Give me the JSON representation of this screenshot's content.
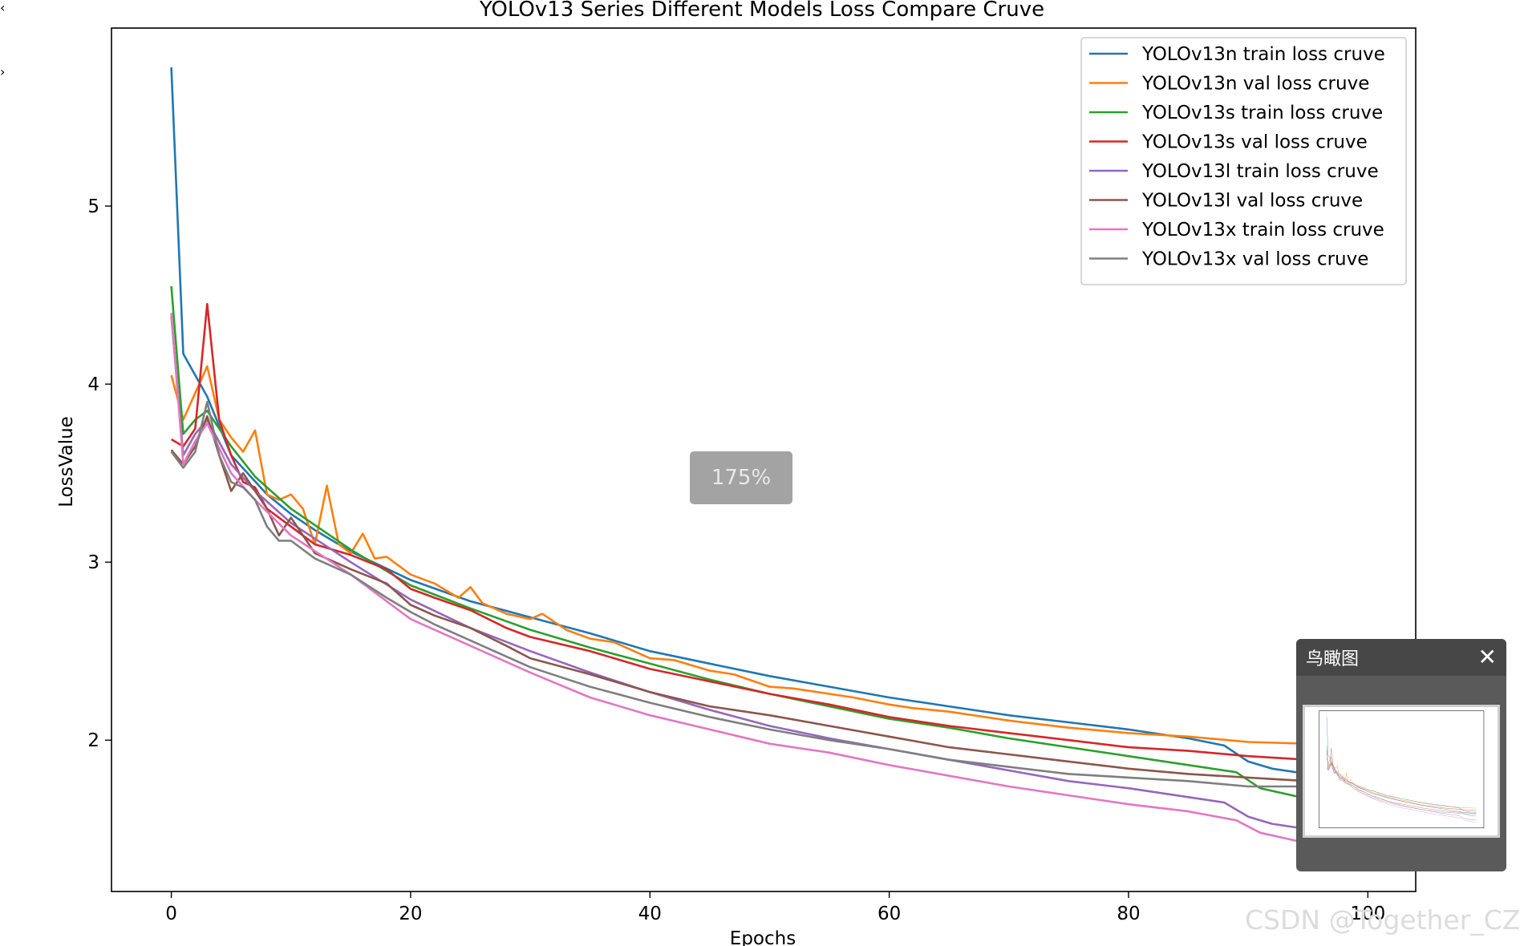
{
  "viewer": {
    "prev_label": "‹",
    "next_label": "›",
    "zoom_text": "175%",
    "minimap_title": "鸟瞰图",
    "minimap_close_label": "✕",
    "watermark": "CSDN @Together_CZ",
    "prev_icon": "chevron-left-icon",
    "next_icon": "chevron-right-icon",
    "close_icon": "close-icon"
  },
  "chart_data": {
    "type": "line",
    "title": "YOLOv13 Series Different Models Loss Compare Cruve",
    "xlabel": "Epochs",
    "ylabel": "LossValue",
    "xlim": [
      -5,
      104
    ],
    "ylim": [
      1.15,
      6.0
    ],
    "x_ticks": [
      0,
      20,
      40,
      60,
      80,
      100
    ],
    "y_ticks": [
      2,
      3,
      4,
      5
    ],
    "grid": false,
    "legend_position": "top-right",
    "series": [
      {
        "name": "YOLOv13n train loss cruve",
        "color": "#1f77b4",
        "points": [
          [
            0,
            5.78
          ],
          [
            1,
            4.17
          ],
          [
            3,
            3.93
          ],
          [
            5,
            3.6
          ],
          [
            8,
            3.38
          ],
          [
            10,
            3.27
          ],
          [
            12,
            3.18
          ],
          [
            15,
            3.06
          ],
          [
            20,
            2.9
          ],
          [
            25,
            2.78
          ],
          [
            30,
            2.69
          ],
          [
            35,
            2.6
          ],
          [
            40,
            2.5
          ],
          [
            45,
            2.43
          ],
          [
            50,
            2.36
          ],
          [
            55,
            2.3
          ],
          [
            60,
            2.24
          ],
          [
            65,
            2.19
          ],
          [
            70,
            2.14
          ],
          [
            75,
            2.1
          ],
          [
            80,
            2.06
          ],
          [
            85,
            2.01
          ],
          [
            88,
            1.97
          ],
          [
            90,
            1.88
          ],
          [
            92,
            1.84
          ],
          [
            95,
            1.81
          ],
          [
            99,
            1.8
          ]
        ]
      },
      {
        "name": "YOLOv13n val loss cruve",
        "color": "#ff7f0e",
        "points": [
          [
            0,
            4.05
          ],
          [
            1,
            3.8
          ],
          [
            2,
            3.95
          ],
          [
            3,
            4.1
          ],
          [
            4,
            3.8
          ],
          [
            5,
            3.7
          ],
          [
            6,
            3.62
          ],
          [
            7,
            3.74
          ],
          [
            8,
            3.38
          ],
          [
            9,
            3.35
          ],
          [
            10,
            3.38
          ],
          [
            11,
            3.3
          ],
          [
            12,
            3.1
          ],
          [
            13,
            3.43
          ],
          [
            14,
            3.1
          ],
          [
            15,
            3.05
          ],
          [
            16,
            3.16
          ],
          [
            17,
            3.02
          ],
          [
            18,
            3.03
          ],
          [
            20,
            2.93
          ],
          [
            22,
            2.88
          ],
          [
            24,
            2.8
          ],
          [
            25,
            2.86
          ],
          [
            26,
            2.77
          ],
          [
            28,
            2.71
          ],
          [
            30,
            2.68
          ],
          [
            31,
            2.71
          ],
          [
            33,
            2.62
          ],
          [
            35,
            2.57
          ],
          [
            37,
            2.55
          ],
          [
            40,
            2.46
          ],
          [
            42,
            2.45
          ],
          [
            45,
            2.39
          ],
          [
            47,
            2.37
          ],
          [
            50,
            2.3
          ],
          [
            52,
            2.29
          ],
          [
            55,
            2.26
          ],
          [
            57,
            2.24
          ],
          [
            60,
            2.2
          ],
          [
            62,
            2.18
          ],
          [
            65,
            2.16
          ],
          [
            70,
            2.11
          ],
          [
            75,
            2.07
          ],
          [
            80,
            2.04
          ],
          [
            85,
            2.02
          ],
          [
            90,
            1.99
          ],
          [
            95,
            1.98
          ],
          [
            99,
            1.97
          ]
        ]
      },
      {
        "name": "YOLOv13s train loss cruve",
        "color": "#2ca02c",
        "points": [
          [
            0,
            4.55
          ],
          [
            1,
            3.72
          ],
          [
            2,
            3.8
          ],
          [
            3,
            3.85
          ],
          [
            5,
            3.65
          ],
          [
            7,
            3.48
          ],
          [
            10,
            3.3
          ],
          [
            15,
            3.07
          ],
          [
            20,
            2.87
          ],
          [
            25,
            2.74
          ],
          [
            30,
            2.62
          ],
          [
            35,
            2.52
          ],
          [
            40,
            2.43
          ],
          [
            45,
            2.34
          ],
          [
            50,
            2.26
          ],
          [
            55,
            2.19
          ],
          [
            60,
            2.12
          ],
          [
            65,
            2.07
          ],
          [
            70,
            2.01
          ],
          [
            75,
            1.96
          ],
          [
            80,
            1.91
          ],
          [
            85,
            1.86
          ],
          [
            89,
            1.82
          ],
          [
            91,
            1.73
          ],
          [
            95,
            1.67
          ],
          [
            99,
            1.64
          ]
        ]
      },
      {
        "name": "YOLOv13s val loss cruve",
        "color": "#d62728",
        "points": [
          [
            0,
            3.69
          ],
          [
            1,
            3.65
          ],
          [
            2,
            3.75
          ],
          [
            3,
            4.45
          ],
          [
            4,
            3.8
          ],
          [
            5,
            3.6
          ],
          [
            6,
            3.45
          ],
          [
            7,
            3.42
          ],
          [
            8,
            3.3
          ],
          [
            9,
            3.25
          ],
          [
            10,
            3.2
          ],
          [
            12,
            3.1
          ],
          [
            15,
            3.04
          ],
          [
            18,
            2.96
          ],
          [
            20,
            2.85
          ],
          [
            22,
            2.8
          ],
          [
            25,
            2.73
          ],
          [
            28,
            2.63
          ],
          [
            30,
            2.58
          ],
          [
            35,
            2.5
          ],
          [
            40,
            2.4
          ],
          [
            45,
            2.33
          ],
          [
            50,
            2.26
          ],
          [
            55,
            2.2
          ],
          [
            60,
            2.13
          ],
          [
            65,
            2.08
          ],
          [
            70,
            2.04
          ],
          [
            75,
            2.0
          ],
          [
            80,
            1.96
          ],
          [
            85,
            1.94
          ],
          [
            90,
            1.91
          ],
          [
            95,
            1.89
          ],
          [
            99,
            1.87
          ]
        ]
      },
      {
        "name": "YOLOv13l train loss cruve",
        "color": "#9467bd",
        "points": [
          [
            0,
            4.38
          ],
          [
            1,
            3.6
          ],
          [
            2,
            3.72
          ],
          [
            3,
            3.8
          ],
          [
            5,
            3.55
          ],
          [
            7,
            3.4
          ],
          [
            10,
            3.22
          ],
          [
            15,
            3.0
          ],
          [
            20,
            2.79
          ],
          [
            25,
            2.63
          ],
          [
            30,
            2.5
          ],
          [
            35,
            2.38
          ],
          [
            40,
            2.27
          ],
          [
            45,
            2.17
          ],
          [
            50,
            2.08
          ],
          [
            55,
            2.01
          ],
          [
            60,
            1.95
          ],
          [
            65,
            1.89
          ],
          [
            70,
            1.83
          ],
          [
            75,
            1.77
          ],
          [
            80,
            1.73
          ],
          [
            85,
            1.68
          ],
          [
            88,
            1.65
          ],
          [
            90,
            1.57
          ],
          [
            92,
            1.53
          ],
          [
            95,
            1.5
          ],
          [
            99,
            1.47
          ]
        ]
      },
      {
        "name": "YOLOv13l val loss cruve",
        "color": "#8c564b",
        "points": [
          [
            0,
            3.63
          ],
          [
            1,
            3.55
          ],
          [
            2,
            3.65
          ],
          [
            3,
            3.82
          ],
          [
            4,
            3.6
          ],
          [
            5,
            3.4
          ],
          [
            6,
            3.5
          ],
          [
            8,
            3.3
          ],
          [
            9,
            3.15
          ],
          [
            10,
            3.25
          ],
          [
            12,
            3.05
          ],
          [
            15,
            2.96
          ],
          [
            18,
            2.88
          ],
          [
            20,
            2.76
          ],
          [
            22,
            2.7
          ],
          [
            25,
            2.63
          ],
          [
            28,
            2.53
          ],
          [
            30,
            2.46
          ],
          [
            35,
            2.37
          ],
          [
            40,
            2.27
          ],
          [
            45,
            2.19
          ],
          [
            50,
            2.14
          ],
          [
            55,
            2.08
          ],
          [
            60,
            2.02
          ],
          [
            65,
            1.96
          ],
          [
            70,
            1.92
          ],
          [
            75,
            1.88
          ],
          [
            80,
            1.84
          ],
          [
            85,
            1.81
          ],
          [
            90,
            1.79
          ],
          [
            95,
            1.77
          ],
          [
            99,
            1.76
          ]
        ]
      },
      {
        "name": "YOLOv13x train loss cruve",
        "color": "#e377c2",
        "points": [
          [
            0,
            4.4
          ],
          [
            1,
            3.55
          ],
          [
            2,
            3.68
          ],
          [
            3,
            3.78
          ],
          [
            5,
            3.5
          ],
          [
            7,
            3.35
          ],
          [
            10,
            3.15
          ],
          [
            15,
            2.93
          ],
          [
            20,
            2.68
          ],
          [
            25,
            2.53
          ],
          [
            30,
            2.38
          ],
          [
            35,
            2.24
          ],
          [
            40,
            2.14
          ],
          [
            45,
            2.06
          ],
          [
            50,
            1.98
          ],
          [
            55,
            1.93
          ],
          [
            60,
            1.86
          ],
          [
            65,
            1.8
          ],
          [
            70,
            1.74
          ],
          [
            75,
            1.69
          ],
          [
            80,
            1.64
          ],
          [
            85,
            1.6
          ],
          [
            89,
            1.55
          ],
          [
            91,
            1.48
          ],
          [
            93,
            1.45
          ],
          [
            95,
            1.42
          ],
          [
            99,
            1.39
          ]
        ]
      },
      {
        "name": "YOLOv13x val loss cruve",
        "color": "#7f7f7f",
        "points": [
          [
            0,
            3.62
          ],
          [
            1,
            3.53
          ],
          [
            2,
            3.62
          ],
          [
            3,
            3.9
          ],
          [
            4,
            3.6
          ],
          [
            5,
            3.45
          ],
          [
            6,
            3.42
          ],
          [
            7,
            3.35
          ],
          [
            8,
            3.2
          ],
          [
            9,
            3.12
          ],
          [
            10,
            3.12
          ],
          [
            12,
            3.02
          ],
          [
            15,
            2.93
          ],
          [
            18,
            2.8
          ],
          [
            20,
            2.72
          ],
          [
            22,
            2.65
          ],
          [
            25,
            2.56
          ],
          [
            28,
            2.47
          ],
          [
            30,
            2.41
          ],
          [
            35,
            2.3
          ],
          [
            40,
            2.21
          ],
          [
            45,
            2.13
          ],
          [
            50,
            2.06
          ],
          [
            55,
            2.0
          ],
          [
            60,
            1.95
          ],
          [
            65,
            1.89
          ],
          [
            70,
            1.85
          ],
          [
            75,
            1.81
          ],
          [
            80,
            1.79
          ],
          [
            85,
            1.77
          ],
          [
            90,
            1.74
          ],
          [
            95,
            1.74
          ],
          [
            99,
            1.72
          ]
        ]
      }
    ]
  }
}
